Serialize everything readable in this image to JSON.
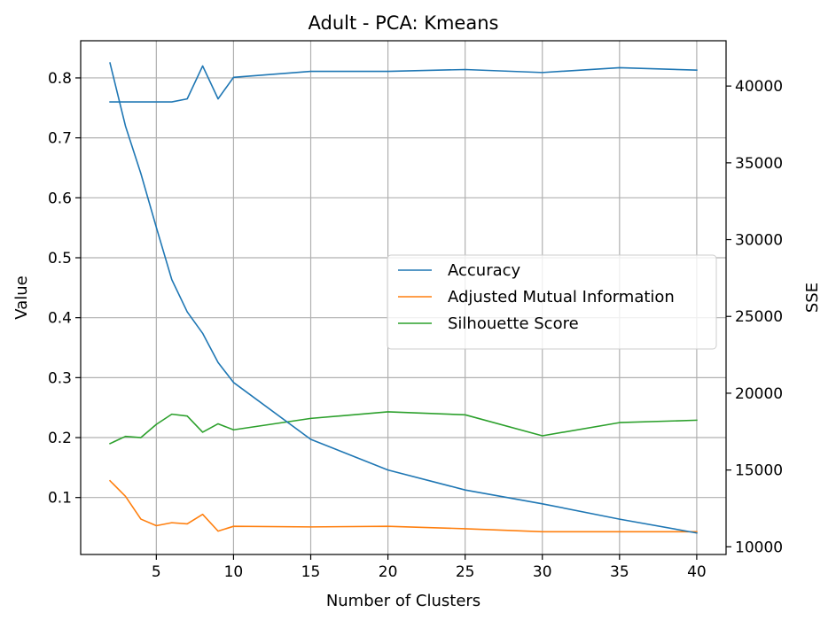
{
  "chart_data": {
    "type": "line",
    "title": "Adult - PCA: Kmeans",
    "xlabel": "Number of Clusters",
    "ylabel": "Value",
    "y2label": "SSE",
    "grid": true,
    "legend_position": "center-right",
    "xlim": [
      0.1,
      41.9
    ],
    "ylim": [
      0.005,
      0.862
    ],
    "y2lim": [
      9500,
      42950
    ],
    "x_ticks": [
      5,
      10,
      15,
      20,
      25,
      30,
      35,
      40
    ],
    "y_ticks": [
      0.1,
      0.2,
      0.3,
      0.4,
      0.5,
      0.6,
      0.7,
      0.8
    ],
    "y2_ticks": [
      10000,
      15000,
      20000,
      25000,
      30000,
      35000,
      40000
    ],
    "x": [
      2,
      3,
      4,
      5,
      6,
      7,
      8,
      9,
      10,
      15,
      20,
      25,
      30,
      35,
      40
    ],
    "series": [
      {
        "name": "Accuracy",
        "axis": "left",
        "color": "#1f77b4",
        "values": [
          0.76,
          0.76,
          0.76,
          0.76,
          0.76,
          0.765,
          0.82,
          0.765,
          0.801,
          0.811,
          0.811,
          0.814,
          0.809,
          0.817,
          0.813
        ]
      },
      {
        "name": "Adjusted Mutual Information",
        "axis": "left",
        "color": "#ff7f0e",
        "values": [
          0.128,
          0.102,
          0.064,
          0.053,
          0.058,
          0.056,
          0.072,
          0.044,
          0.052,
          0.051,
          0.052,
          0.048,
          0.043,
          0.043,
          0.043
        ]
      },
      {
        "name": "Silhouette Score",
        "axis": "left",
        "color": "#2ca02c",
        "values": [
          0.19,
          0.202,
          0.2,
          0.222,
          0.239,
          0.236,
          0.209,
          0.223,
          0.213,
          0.232,
          0.243,
          0.238,
          0.203,
          0.225,
          0.229
        ]
      },
      {
        "axis": "right",
        "color": "#1f77b4",
        "values": [
          41500,
          37400,
          34300,
          30800,
          27400,
          25300,
          23900,
          22000,
          20700,
          17000,
          15000,
          13700,
          12800,
          11800,
          10900
        ]
      }
    ]
  }
}
